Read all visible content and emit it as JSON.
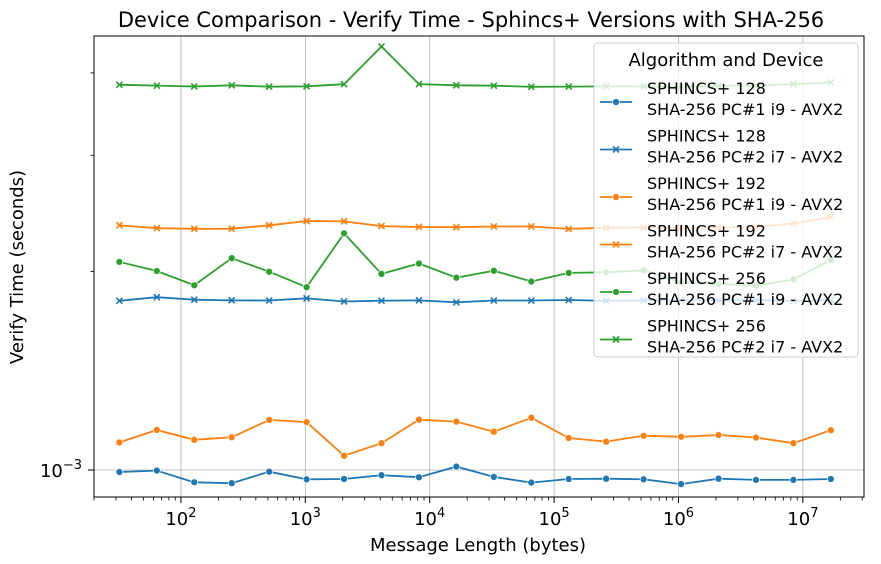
{
  "chart_data": {
    "type": "line",
    "title": "Device Comparison - Verify Time - Sphincs+ Versions with SHA-256",
    "xlabel": "Message Length (bytes)",
    "ylabel": "Verify Time (seconds)",
    "xscale": "log",
    "yscale": "log",
    "xlim": [
      20,
      31000000
    ],
    "ylim": [
      0.00091,
      0.00455
    ],
    "x_ticks": [
      {
        "value": 100,
        "base": "10",
        "exp": "2"
      },
      {
        "value": 1000,
        "base": "10",
        "exp": "3"
      },
      {
        "value": 10000,
        "base": "10",
        "exp": "4"
      },
      {
        "value": 100000,
        "base": "10",
        "exp": "5"
      },
      {
        "value": 1000000,
        "base": "10",
        "exp": "6"
      },
      {
        "value": 10000000,
        "base": "10",
        "exp": "7"
      }
    ],
    "y_ticks": [
      {
        "value": 0.001,
        "base": "10",
        "exp": "−3"
      }
    ],
    "grid": true,
    "legend": {
      "title": "Algorithm and Device",
      "placement": "top-right"
    },
    "x": [
      32,
      64,
      128,
      256,
      512,
      1024,
      2048,
      4096,
      8192,
      16384,
      32768,
      65536,
      131072,
      262144,
      524288,
      1048576,
      2097152,
      4194304,
      8388608,
      16777216
    ],
    "series": [
      {
        "name_line1": "SPHINCS+ 128",
        "name_line2": "SHA-256 PC#1 i9 - AVX2",
        "color": "#1f77b4",
        "marker": "circle",
        "values": [
          0.000993,
          0.000998,
          0.000958,
          0.000955,
          0.000994,
          0.000968,
          0.000969,
          0.000982,
          0.000975,
          0.001012,
          0.000976,
          0.000957,
          0.000969,
          0.00097,
          0.000968,
          0.000952,
          0.00097,
          0.000966,
          0.000966,
          0.000969
        ]
      },
      {
        "name_line1": "SPHINCS+ 128",
        "name_line2": "SHA-256 PC#2 i7 - AVX2",
        "color": "#1f77b4",
        "marker": "x",
        "values": [
          0.001805,
          0.001828,
          0.001812,
          0.001808,
          0.001807,
          0.001821,
          0.001801,
          0.001806,
          0.001808,
          0.001796,
          0.001807,
          0.001807,
          0.00181,
          0.001805,
          0.001807,
          0.001808,
          0.001807,
          0.00181,
          0.001803,
          0.00181
        ]
      },
      {
        "name_line1": "SPHINCS+ 192",
        "name_line2": "SHA-256 PC#1 i9 - AVX2",
        "color": "#ff7f0e",
        "marker": "circle",
        "values": [
          0.001101,
          0.00115,
          0.001111,
          0.001121,
          0.001191,
          0.001182,
          0.001051,
          0.001098,
          0.001192,
          0.001184,
          0.001143,
          0.0012,
          0.001118,
          0.001104,
          0.001127,
          0.001123,
          0.00113,
          0.00112,
          0.001098,
          0.001149
        ]
      },
      {
        "name_line1": "SPHINCS+ 192",
        "name_line2": "SHA-256 PC#2 i7 - AVX2",
        "color": "#ff7f0e",
        "marker": "x",
        "values": [
          0.00235,
          0.002326,
          0.002321,
          0.002322,
          0.00235,
          0.002385,
          0.002382,
          0.002343,
          0.002336,
          0.002334,
          0.00234,
          0.00234,
          0.00232,
          0.00233,
          0.002332,
          0.002331,
          0.002331,
          0.002337,
          0.002365,
          0.002418
        ]
      },
      {
        "name_line1": "SPHINCS+ 256",
        "name_line2": "SHA-256 PC#1 i9 - AVX2",
        "color": "#2ca02c",
        "marker": "circle",
        "values": [
          0.002068,
          0.002003,
          0.001906,
          0.002095,
          0.001998,
          0.001893,
          0.002284,
          0.001983,
          0.002056,
          0.001957,
          0.002005,
          0.001931,
          0.00199,
          0.001994,
          0.002007,
          0.001924,
          0.001914,
          0.001903,
          0.001945,
          0.002082
        ]
      },
      {
        "name_line1": "SPHINCS+ 256",
        "name_line2": "SHA-256 PC#2 i7 - AVX2",
        "color": "#2ca02c",
        "marker": "x",
        "values": [
          0.003837,
          0.003826,
          0.003815,
          0.003831,
          0.003812,
          0.003817,
          0.003845,
          0.004386,
          0.003847,
          0.00383,
          0.003825,
          0.00381,
          0.003813,
          0.003816,
          0.003815,
          0.00381,
          0.003826,
          0.003826,
          0.003846,
          0.003869
        ]
      }
    ]
  }
}
